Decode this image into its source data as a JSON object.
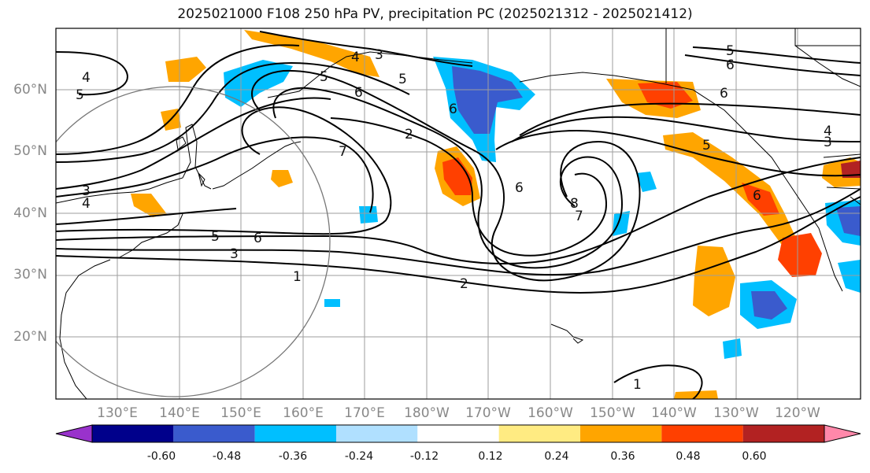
{
  "title": "2025021000 F108 250 hPa PV, precipitation PC (2025021312 - 2025021412)",
  "lat_ticks": [
    "60°N",
    "50°N",
    "40°N",
    "30°N",
    "20°N"
  ],
  "lon_ticks": [
    "130°E",
    "140°E",
    "150°E",
    "160°E",
    "170°E",
    "180°W",
    "170°W",
    "160°W",
    "150°W",
    "140°W",
    "130°W",
    "120°W"
  ],
  "contour_labels": [
    "4",
    "5",
    "3",
    "4",
    "3",
    "5",
    "4",
    "5",
    "6",
    "7",
    "2",
    "6",
    "5",
    "6",
    "3",
    "1",
    "2",
    "6",
    "8",
    "7",
    "5",
    "6",
    "4",
    "3",
    "6",
    "5",
    "6",
    "1"
  ],
  "colorbar": {
    "labels": [
      "-0.60",
      "-0.48",
      "-0.36",
      "-0.24",
      "-0.12",
      "0.12",
      "0.24",
      "0.36",
      "0.48",
      "0.60"
    ],
    "colors": [
      "#9932cc",
      "#00008b",
      "#3a5bcd",
      "#00bfff",
      "#b0e0ff",
      "#ffffff",
      "#ffeb82",
      "#ffa500",
      "#ff4000",
      "#b22222",
      "#ff88aa"
    ]
  },
  "colors": {
    "pv_contour": "#000000",
    "grid": "#9e9e9e",
    "coast": "#000000",
    "tick_text": "#888888",
    "circle": "#777777"
  }
}
